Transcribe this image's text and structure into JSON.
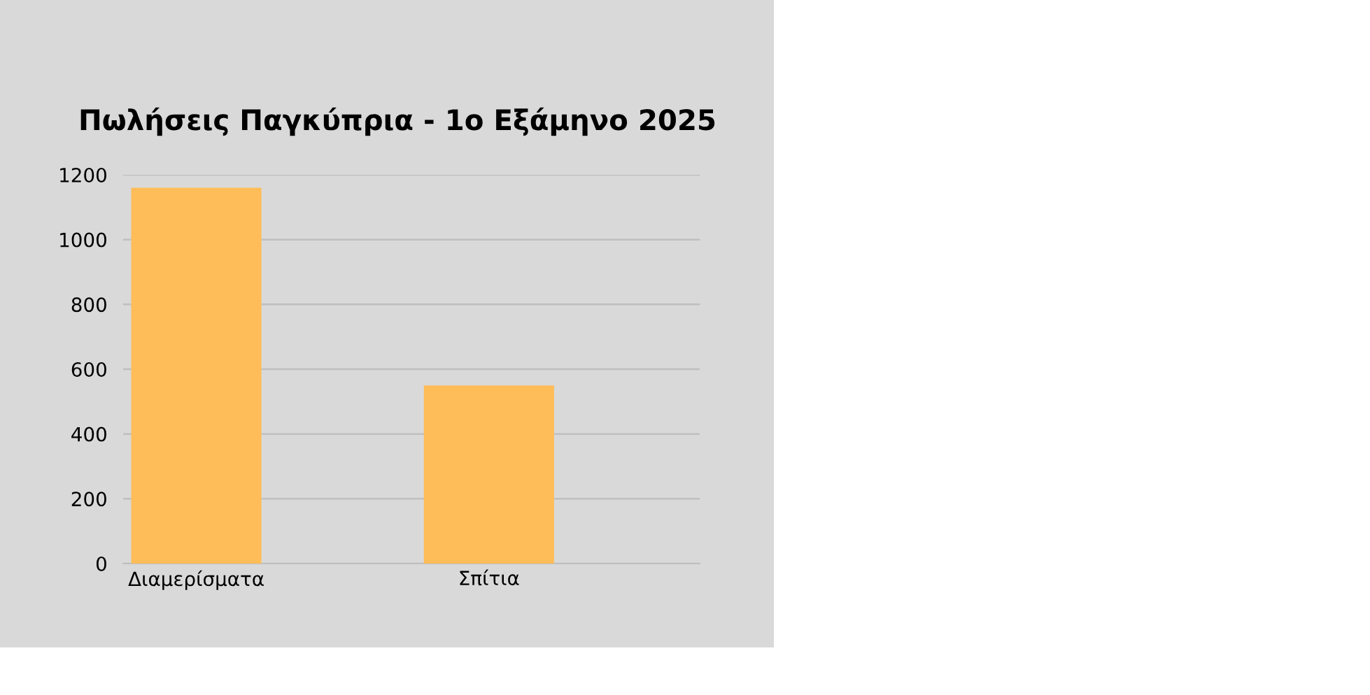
{
  "chart_data": {
    "type": "bar",
    "title": "Πωλήσεις Παγκύπρια - 1ο Εξάμηνο 2025",
    "categories": [
      "Διαμερίσματα",
      "Σπίτια"
    ],
    "values": [
      1160,
      550
    ],
    "color": "#ffbd59",
    "ylim": [
      0,
      1200
    ],
    "yticks": [
      0,
      200,
      400,
      600,
      800,
      1000,
      1200
    ],
    "grid": "y",
    "legend": false
  }
}
